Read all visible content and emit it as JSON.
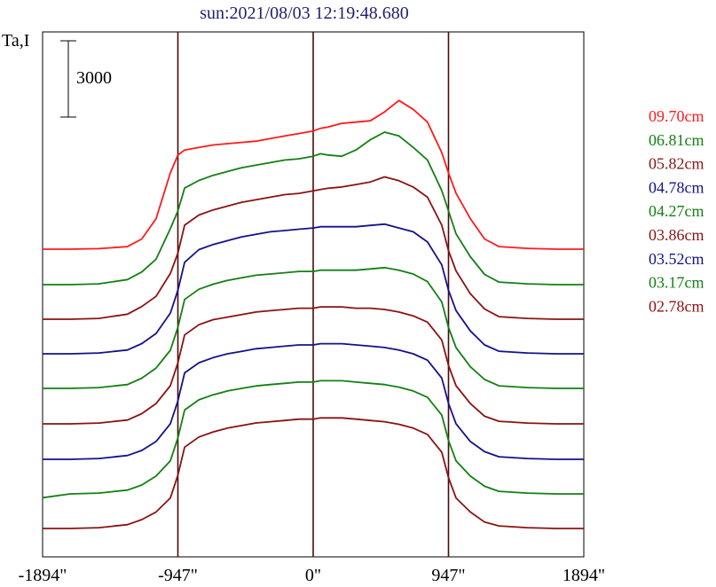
{
  "chart_data": {
    "type": "line",
    "title": "sun:2021/08/03 12:19:48.680",
    "ylabel": "Ta,I",
    "xlabel": "",
    "x_ticks": [
      {
        "value": -1894,
        "label": "-1894\""
      },
      {
        "value": -947,
        "label": "-947\""
      },
      {
        "value": 0,
        "label": "0\""
      },
      {
        "value": 947,
        "label": "947\""
      },
      {
        "value": 1894,
        "label": "1894\""
      }
    ],
    "xlim": [
      -1894,
      1894
    ],
    "vertical_lines": [
      -947,
      0,
      947
    ],
    "scale_bar": {
      "value": 3000,
      "label": "3000"
    },
    "stacking": "offset",
    "x": [
      -1894,
      -1700,
      -1500,
      -1300,
      -1200,
      -1100,
      -1000,
      -947,
      -900,
      -800,
      -700,
      -600,
      -500,
      -400,
      -300,
      -200,
      -100,
      0,
      50,
      100,
      200,
      300,
      400,
      500,
      600,
      700,
      800,
      900,
      947,
      1000,
      1100,
      1200,
      1300,
      1500,
      1700,
      1894
    ],
    "series": [
      {
        "name": "09.70cm",
        "color": "#ff1a1a",
        "baseline": 0,
        "values": [
          0,
          0,
          20,
          100,
          400,
          1200,
          3000,
          3700,
          3900,
          4000,
          4100,
          4150,
          4200,
          4250,
          4350,
          4450,
          4550,
          4650,
          4750,
          4800,
          4950,
          5000,
          5050,
          5400,
          5850,
          5500,
          5000,
          3800,
          3000,
          2200,
          1200,
          400,
          100,
          30,
          0,
          0
        ]
      },
      {
        "name": "06.81cm",
        "color": "#128012",
        "baseline": 0,
        "values": [
          0,
          0,
          30,
          200,
          500,
          1000,
          2200,
          2900,
          3800,
          4100,
          4300,
          4450,
          4600,
          4700,
          4800,
          4900,
          4950,
          5050,
          5150,
          5100,
          5050,
          5300,
          5700,
          6000,
          5850,
          5400,
          4900,
          3700,
          2900,
          2000,
          1100,
          400,
          100,
          30,
          0,
          0
        ]
      },
      {
        "name": "05.82cm",
        "color": "#8b1212",
        "baseline": 0,
        "values": [
          0,
          0,
          30,
          200,
          500,
          900,
          1800,
          2600,
          3700,
          4100,
          4300,
          4450,
          4600,
          4700,
          4800,
          4900,
          4950,
          5050,
          5100,
          5150,
          5200,
          5300,
          5400,
          5600,
          5450,
          5200,
          4800,
          3700,
          2700,
          1900,
          1000,
          400,
          100,
          30,
          0,
          0
        ]
      },
      {
        "name": "04.78cm",
        "color": "#12128b",
        "baseline": 0,
        "values": [
          0,
          0,
          30,
          150,
          400,
          800,
          1600,
          2500,
          3600,
          4100,
          4300,
          4450,
          4600,
          4700,
          4800,
          4850,
          4900,
          4950,
          5000,
          5000,
          5000,
          5000,
          5050,
          5100,
          4950,
          4800,
          4400,
          3500,
          2500,
          1700,
          900,
          350,
          100,
          30,
          0,
          0
        ]
      },
      {
        "name": "04.27cm",
        "color": "#128012",
        "baseline": 0,
        "values": [
          0,
          0,
          30,
          150,
          400,
          800,
          1500,
          2400,
          3500,
          3900,
          4100,
          4250,
          4350,
          4450,
          4500,
          4550,
          4600,
          4600,
          4650,
          4650,
          4650,
          4650,
          4700,
          4750,
          4650,
          4500,
          4200,
          3400,
          2400,
          1600,
          850,
          350,
          100,
          30,
          0,
          0
        ]
      },
      {
        "name": "03.86cm",
        "color": "#8b1212",
        "baseline": 0,
        "values": [
          0,
          0,
          30,
          150,
          400,
          800,
          1500,
          2400,
          3500,
          3900,
          4100,
          4200,
          4300,
          4400,
          4450,
          4500,
          4550,
          4550,
          4600,
          4600,
          4600,
          4550,
          4550,
          4500,
          4400,
          4250,
          4000,
          3300,
          2300,
          1500,
          800,
          300,
          100,
          30,
          0,
          0
        ]
      },
      {
        "name": "03.52cm",
        "color": "#12128b",
        "baseline": 0,
        "values": [
          0,
          0,
          30,
          150,
          350,
          700,
          1400,
          2300,
          3400,
          3800,
          4000,
          4150,
          4250,
          4350,
          4400,
          4450,
          4500,
          4500,
          4550,
          4550,
          4550,
          4500,
          4450,
          4400,
          4300,
          4150,
          3900,
          3200,
          2200,
          1400,
          700,
          300,
          100,
          30,
          0,
          0
        ]
      },
      {
        "name": "03.17cm",
        "color": "#128012",
        "baseline": 0,
        "values": [
          -150,
          0,
          30,
          150,
          350,
          700,
          1300,
          2200,
          3300,
          3700,
          3900,
          4050,
          4150,
          4250,
          4300,
          4350,
          4400,
          4400,
          4450,
          4450,
          4450,
          4400,
          4350,
          4300,
          4200,
          4050,
          3800,
          3100,
          2100,
          1300,
          700,
          300,
          100,
          30,
          0,
          0
        ]
      },
      {
        "name": "02.78cm",
        "color": "#8b1212",
        "baseline": 0,
        "values": [
          0,
          0,
          30,
          150,
          350,
          650,
          1200,
          2100,
          3200,
          3600,
          3800,
          3950,
          4050,
          4150,
          4200,
          4250,
          4300,
          4300,
          4350,
          4350,
          4350,
          4300,
          4250,
          4200,
          4100,
          3950,
          3700,
          3000,
          2000,
          1200,
          650,
          250,
          100,
          30,
          0,
          0
        ]
      }
    ]
  }
}
